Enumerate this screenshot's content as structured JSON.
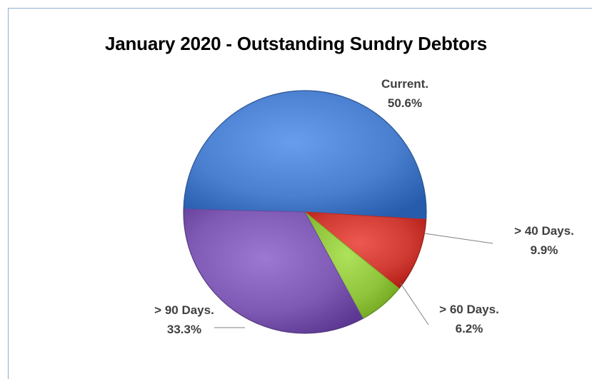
{
  "chart_data": {
    "type": "pie",
    "title": "January 2020 - Outstanding Sundry Debtors",
    "categories": [
      "Current.",
      "> 40 Days.",
      "> 60 Days.",
      "> 90 Days."
    ],
    "values": [
      50.6,
      9.9,
      6.2,
      33.3
    ],
    "value_labels": [
      "50.6%",
      "9.9%",
      "6.2%",
      "33.3%"
    ],
    "colors": [
      "#4a7fcf",
      "#cf3b32",
      "#8fc43c",
      "#7f5ab4"
    ],
    "legend": "none"
  }
}
